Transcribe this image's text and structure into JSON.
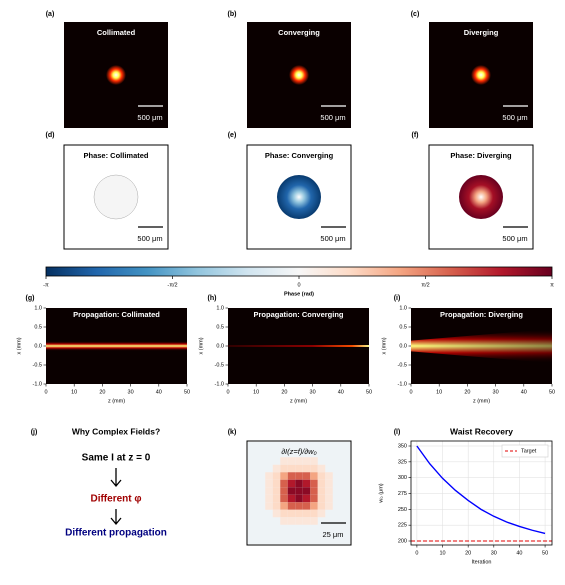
{
  "chart_data": [
    {
      "type": "image",
      "label": "(a)",
      "title": "Collimated",
      "scalebar_label": "500 μm",
      "style": "beam"
    },
    {
      "type": "image",
      "label": "(b)",
      "title": "Converging",
      "scalebar_label": "500 μm",
      "style": "beam"
    },
    {
      "type": "image",
      "label": "(c)",
      "title": "Diverging",
      "scalebar_label": "500 μm",
      "style": "beam"
    },
    {
      "type": "image",
      "label": "(d)",
      "title": "Phase: Collimated",
      "scalebar_label": "500 μm",
      "style": "phase-flat"
    },
    {
      "type": "image",
      "label": "(e)",
      "title": "Phase: Converging",
      "scalebar_label": "500 μm",
      "style": "phase-converging"
    },
    {
      "type": "image",
      "label": "(f)",
      "title": "Phase: Diverging",
      "scalebar_label": "500 μm",
      "style": "phase-diverging"
    },
    {
      "type": "colorbar",
      "xlabel": "Phase (rad)",
      "xlim": [
        -3.14159,
        3.14159
      ],
      "xticks": [
        {
          "value": -3.14159,
          "label": "-π"
        },
        {
          "value": -1.5708,
          "label": "-π/2"
        },
        0,
        {
          "value": 1.5708,
          "label": "π/2"
        },
        {
          "value": 3.14159,
          "label": "π"
        }
      ]
    },
    {
      "type": "propagation",
      "label": "(g)",
      "title": "Propagation: Collimated",
      "style": "collimated",
      "xlabel": "z (mm)",
      "ylabel": "x (mm)",
      "xlim": [
        0,
        50
      ],
      "ylim": [
        -1,
        1
      ],
      "xticks": [
        0,
        10,
        20,
        30,
        40,
        50
      ],
      "yticks": [
        {
          "value": -1,
          "label": "-1.0"
        },
        {
          "value": -0.5,
          "label": "-0.5"
        },
        {
          "value": 0,
          "label": "0.0"
        },
        {
          "value": 0.5,
          "label": "0.5"
        },
        {
          "value": 1,
          "label": "1.0"
        }
      ]
    },
    {
      "type": "propagation",
      "label": "(h)",
      "title": "Propagation: Converging",
      "style": "converging",
      "xlabel": "z (mm)",
      "ylabel": "x (mm)",
      "xlim": [
        0,
        50
      ],
      "ylim": [
        -1,
        1
      ],
      "xticks": [
        0,
        10,
        20,
        30,
        40,
        50
      ],
      "yticks": [
        {
          "value": -1,
          "label": "-1.0"
        },
        {
          "value": -0.5,
          "label": "-0.5"
        },
        {
          "value": 0,
          "label": "0.0"
        },
        {
          "value": 0.5,
          "label": "0.5"
        },
        {
          "value": 1,
          "label": "1.0"
        }
      ]
    },
    {
      "type": "propagation",
      "label": "(i)",
      "title": "Propagation: Diverging",
      "style": "diverging",
      "xlabel": "z (mm)",
      "ylabel": "x (mm)",
      "xlim": [
        0,
        50
      ],
      "ylim": [
        -1,
        1
      ],
      "xticks": [
        0,
        10,
        20,
        30,
        40,
        50
      ],
      "yticks": [
        {
          "value": -1,
          "label": "-1.0"
        },
        {
          "value": -0.5,
          "label": "-0.5"
        },
        {
          "value": 0,
          "label": "0.0"
        },
        {
          "value": 0.5,
          "label": "0.5"
        },
        {
          "value": 1,
          "label": "1.0"
        }
      ]
    },
    {
      "type": "explainer",
      "label": "(j)",
      "title": "Why Complex Fields?",
      "lines": [
        "Same I at z = 0",
        "Different φ",
        "Different propagation"
      ]
    },
    {
      "type": "image",
      "label": "(k)",
      "title": "∂I(z=f)/∂w₀",
      "scalebar_label": "25 μm",
      "style": "gradient-map"
    },
    {
      "type": "line",
      "label": "(l)",
      "title": "Waist Recovery",
      "xlabel": "Iteration",
      "ylabel": "w₀ (μm)",
      "x": [
        0,
        5,
        10,
        15,
        20,
        25,
        30,
        35,
        40,
        45,
        50
      ],
      "values": [
        350,
        322,
        299,
        280,
        264,
        250,
        239,
        230,
        223,
        217,
        212
      ],
      "color": "#0000ff",
      "reference_lines": [
        {
          "name": "Target",
          "value": 200,
          "color": "#e00000"
        }
      ],
      "xlim": [
        -2.3,
        52.7
      ],
      "ylim": [
        193.7,
        357.9
      ],
      "xticks": [
        0,
        10,
        20,
        30,
        40,
        50
      ],
      "yticks": [
        200,
        225,
        250,
        275,
        300,
        325,
        350
      ],
      "grid": true,
      "legend": "upper right"
    }
  ]
}
